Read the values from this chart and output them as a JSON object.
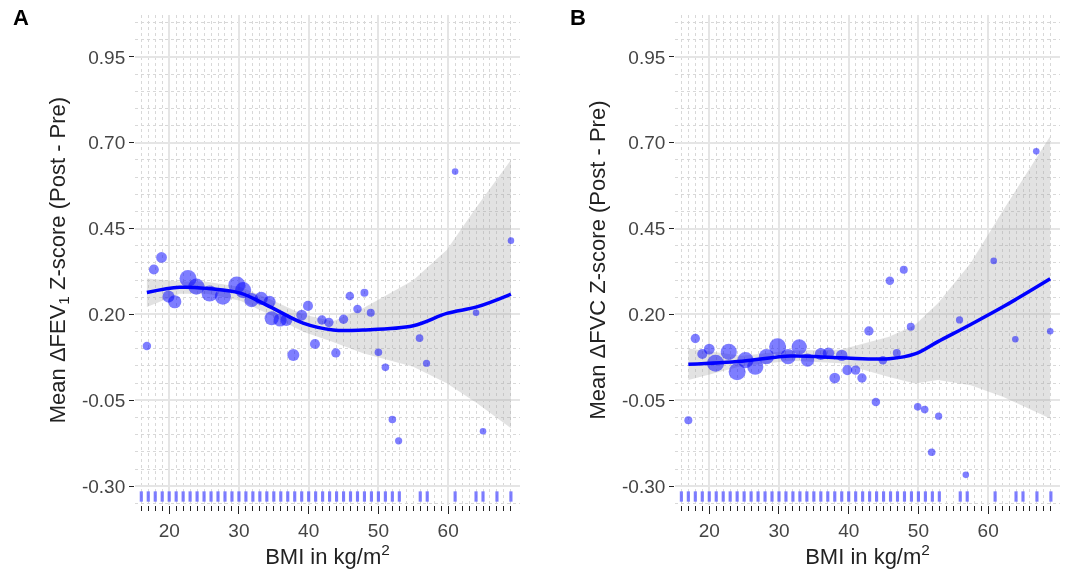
{
  "chart_data": [
    {
      "type": "bubble",
      "title": "A",
      "xlabel": "BMI in kg/m$^{2}$",
      "ylabel": "Mean ΔFEV$_{1}$ Z-score (Post - Pre)",
      "xlim": [
        15.1,
        70.3
      ],
      "ylim": [
        -0.355,
        1.072
      ],
      "grid": true,
      "xticks": [
        {
          "value": 16,
          "label": null
        },
        {
          "value": 17,
          "label": null
        },
        {
          "value": 18,
          "label": null
        },
        {
          "value": 19,
          "label": null
        },
        20,
        {
          "value": 21,
          "label": null
        },
        {
          "value": 22,
          "label": null
        },
        {
          "value": 23,
          "label": null
        },
        {
          "value": 24,
          "label": null
        },
        {
          "value": 25,
          "label": null
        },
        {
          "value": 26,
          "label": null
        },
        {
          "value": 27,
          "label": null
        },
        {
          "value": 28,
          "label": null
        },
        {
          "value": 29,
          "label": null
        },
        30,
        {
          "value": 31,
          "label": null
        },
        {
          "value": 32,
          "label": null
        },
        {
          "value": 33,
          "label": null
        },
        {
          "value": 34,
          "label": null
        },
        {
          "value": 35,
          "label": null
        },
        {
          "value": 36,
          "label": null
        },
        {
          "value": 37,
          "label": null
        },
        {
          "value": 38,
          "label": null
        },
        {
          "value": 39,
          "label": null
        },
        40,
        {
          "value": 41,
          "label": null
        },
        {
          "value": 42,
          "label": null
        },
        {
          "value": 43,
          "label": null
        },
        {
          "value": 44,
          "label": null
        },
        {
          "value": 45,
          "label": null
        },
        {
          "value": 46,
          "label": null
        },
        {
          "value": 47,
          "label": null
        },
        {
          "value": 48,
          "label": null
        },
        {
          "value": 49,
          "label": null
        },
        50,
        {
          "value": 51,
          "label": null
        },
        {
          "value": 52,
          "label": null
        },
        {
          "value": 53,
          "label": null
        },
        {
          "value": 54,
          "label": null
        },
        {
          "value": 55,
          "label": null
        },
        {
          "value": 56,
          "label": null
        },
        {
          "value": 57,
          "label": null
        },
        {
          "value": 58,
          "label": null
        },
        {
          "value": 59,
          "label": null
        },
        60,
        {
          "value": 61,
          "label": null
        },
        {
          "value": 62,
          "label": null
        },
        {
          "value": 63,
          "label": null
        },
        {
          "value": 64,
          "label": null
        },
        {
          "value": 65,
          "label": null
        },
        {
          "value": 66,
          "label": null
        },
        {
          "value": 67,
          "label": null
        },
        {
          "value": 68,
          "label": null
        },
        {
          "value": 69,
          "label": null
        }
      ],
      "yticks": [
        {
          "value": -0.3,
          "label": "-0.30"
        },
        {
          "value": -0.05,
          "label": "-0.05"
        },
        {
          "value": 0.2,
          "label": "0.20"
        },
        {
          "value": 0.45,
          "label": "0.45"
        },
        {
          "value": 0.7,
          "label": "0.70"
        },
        {
          "value": 0.95,
          "label": "0.95"
        }
      ],
      "series": [
        {
          "type": "line",
          "color": "#0000ff",
          "x": [
            16.8,
            21.5,
            25.4,
            30.2,
            34.4,
            39.2,
            43.5,
            47.8,
            55.0,
            59.8,
            64.1,
            69.0
          ],
          "values": [
            0.264,
            0.279,
            0.276,
            0.262,
            0.223,
            0.175,
            0.155,
            0.155,
            0.167,
            0.203,
            0.222,
            0.259
          ],
          "lower": [
            0.222,
            0.26,
            0.26,
            0.24,
            0.2,
            0.15,
            0.12,
            0.087,
            0.048,
            0.0,
            -0.058,
            -0.131
          ],
          "upper": [
            0.305,
            0.296,
            0.295,
            0.28,
            0.245,
            0.2,
            0.18,
            0.218,
            0.3,
            0.388,
            0.514,
            0.65
          ]
        },
        {
          "color": "#0000ff",
          "x": [
            16.8,
            17.8,
            18.9,
            22.7,
            20.8,
            19.9,
            23.9,
            25.8,
            27.7,
            29.7,
            30.6,
            31.8,
            33.2,
            34.4,
            34.7,
            35.9,
            36.8,
            39.0,
            39.9,
            37.8,
            40.9,
            41.9,
            42.9,
            43.9,
            45.0,
            45.9,
            47.0,
            48.0,
            48.9,
            50.0,
            51.0,
            52.0,
            52.9,
            55.9,
            56.9,
            61.0,
            64.0,
            65.0,
            69.0
          ],
          "values": [
            0.108,
            0.331,
            0.366,
            0.305,
            0.237,
            0.252,
            0.281,
            0.261,
            0.252,
            0.286,
            0.271,
            0.242,
            0.247,
            0.237,
            0.189,
            0.184,
            0.184,
            0.198,
            0.225,
            0.082,
            0.114,
            0.184,
            0.177,
            0.088,
            0.186,
            0.254,
            0.216,
            0.263,
            0.205,
            0.09,
            0.046,
            -0.106,
            -0.168,
            0.131,
            0.058,
            0.616,
            0.205,
            -0.14,
            0.415
          ],
          "sizes": [
            0.25,
            0.35,
            0.4,
            1,
            0.6,
            0.5,
            0.9,
            0.9,
            0.9,
            1,
            0.9,
            0.7,
            0.6,
            0.5,
            0.7,
            0.6,
            0.5,
            0.4,
            0.35,
            0.5,
            0.35,
            0.3,
            0.3,
            0.3,
            0.3,
            0.25,
            0.25,
            0.22,
            0.22,
            0.2,
            0.2,
            0.2,
            0.18,
            0.2,
            0.18,
            0.15,
            0.15,
            0.15,
            0.15
          ]
        },
        {
          "type": "bar",
          "color": "#6666ff",
          "x": [
            16,
            17,
            18,
            19,
            20,
            21,
            22,
            23,
            24,
            25,
            26,
            27,
            28,
            29,
            30,
            31,
            32,
            33,
            34,
            35,
            36,
            37,
            38,
            39,
            40,
            41,
            42,
            43,
            44,
            45,
            46,
            47,
            48,
            49,
            50,
            51,
            52,
            53,
            56,
            57,
            61,
            64,
            65,
            67,
            69
          ],
          "base": [
            -0.345,
            -0.345,
            -0.345,
            -0.345,
            -0.345,
            -0.345,
            -0.345,
            -0.345,
            -0.345,
            -0.345,
            -0.345,
            -0.345,
            -0.345,
            -0.345,
            -0.345,
            -0.345,
            -0.345,
            -0.345,
            -0.345,
            -0.345,
            -0.345,
            -0.345,
            -0.345,
            -0.345,
            -0.345,
            -0.345,
            -0.345,
            -0.345,
            -0.345,
            -0.345,
            -0.345,
            -0.345,
            -0.345,
            -0.345,
            -0.345,
            -0.345,
            -0.345,
            -0.345,
            -0.345,
            -0.345,
            -0.345,
            -0.345,
            -0.345,
            -0.345,
            -0.345
          ],
          "values": [
            0.03,
            0.03,
            0.03,
            0.03,
            0.03,
            0.03,
            0.03,
            0.03,
            0.03,
            0.03,
            0.03,
            0.03,
            0.03,
            0.03,
            0.03,
            0.03,
            0.03,
            0.03,
            0.03,
            0.03,
            0.03,
            0.03,
            0.03,
            0.03,
            0.03,
            0.03,
            0.03,
            0.03,
            0.03,
            0.03,
            0.03,
            0.03,
            0.03,
            0.03,
            0.03,
            0.03,
            0.03,
            0.03,
            0.03,
            0.03,
            0.03,
            0.03,
            0.03,
            0.03,
            0.03
          ]
        }
      ]
    },
    {
      "type": "bubble",
      "title": "B",
      "xlabel": "BMI in kg/m$^{2}$",
      "ylabel": "Mean ΔFVC Z-score (Post - Pre)",
      "xlim": [
        15.1,
        70.3
      ],
      "ylim": [
        -0.355,
        1.072
      ],
      "grid": true,
      "xticks": [
        {
          "value": 16,
          "label": null
        },
        {
          "value": 17,
          "label": null
        },
        {
          "value": 18,
          "label": null
        },
        {
          "value": 19,
          "label": null
        },
        20,
        {
          "value": 21,
          "label": null
        },
        {
          "value": 22,
          "label": null
        },
        {
          "value": 23,
          "label": null
        },
        {
          "value": 24,
          "label": null
        },
        {
          "value": 25,
          "label": null
        },
        {
          "value": 26,
          "label": null
        },
        {
          "value": 27,
          "label": null
        },
        {
          "value": 28,
          "label": null
        },
        {
          "value": 29,
          "label": null
        },
        30,
        {
          "value": 31,
          "label": null
        },
        {
          "value": 32,
          "label": null
        },
        {
          "value": 33,
          "label": null
        },
        {
          "value": 34,
          "label": null
        },
        {
          "value": 35,
          "label": null
        },
        {
          "value": 36,
          "label": null
        },
        {
          "value": 37,
          "label": null
        },
        {
          "value": 38,
          "label": null
        },
        {
          "value": 39,
          "label": null
        },
        40,
        {
          "value": 41,
          "label": null
        },
        {
          "value": 42,
          "label": null
        },
        {
          "value": 43,
          "label": null
        },
        {
          "value": 44,
          "label": null
        },
        {
          "value": 45,
          "label": null
        },
        {
          "value": 46,
          "label": null
        },
        {
          "value": 47,
          "label": null
        },
        {
          "value": 48,
          "label": null
        },
        {
          "value": 49,
          "label": null
        },
        50,
        {
          "value": 51,
          "label": null
        },
        {
          "value": 52,
          "label": null
        },
        {
          "value": 53,
          "label": null
        },
        {
          "value": 54,
          "label": null
        },
        {
          "value": 55,
          "label": null
        },
        {
          "value": 56,
          "label": null
        },
        {
          "value": 57,
          "label": null
        },
        {
          "value": 58,
          "label": null
        },
        {
          "value": 59,
          "label": null
        },
        60,
        {
          "value": 61,
          "label": null
        },
        {
          "value": 62,
          "label": null
        },
        {
          "value": 63,
          "label": null
        },
        {
          "value": 64,
          "label": null
        },
        {
          "value": 65,
          "label": null
        },
        {
          "value": 66,
          "label": null
        },
        {
          "value": 67,
          "label": null
        },
        {
          "value": 68,
          "label": null
        },
        {
          "value": 69,
          "label": null
        }
      ],
      "yticks": [
        {
          "value": -0.3,
          "label": "-0.30"
        },
        {
          "value": -0.05,
          "label": "-0.05"
        },
        {
          "value": 0.2,
          "label": "0.20"
        },
        {
          "value": 0.45,
          "label": "0.45"
        },
        {
          "value": 0.7,
          "label": "0.70"
        },
        {
          "value": 0.95,
          "label": "0.95"
        }
      ],
      "series": [
        {
          "type": "line",
          "color": "#0000ff",
          "x": [
            17.0,
            24.7,
            31.7,
            38.8,
            45.8,
            49.5,
            52.8,
            57.5,
            62.2,
            68.9
          ],
          "values": [
            0.055,
            0.064,
            0.079,
            0.074,
            0.071,
            0.085,
            0.121,
            0.171,
            0.223,
            0.304
          ],
          "lower": [
            0.009,
            0.05,
            0.065,
            0.058,
            0.018,
            -0.001,
            0.009,
            -0.006,
            -0.04,
            -0.103
          ],
          "upper": [
            0.101,
            0.08,
            0.095,
            0.097,
            0.135,
            0.169,
            0.233,
            0.35,
            0.505,
            0.719
          ]
        },
        {
          "color": "#0000ff",
          "x": [
            17.0,
            18.0,
            19.0,
            20.0,
            20.9,
            22.8,
            24.0,
            25.2,
            26.6,
            28.2,
            29.8,
            31.3,
            32.9,
            34.1,
            36.0,
            37.1,
            39.0,
            38.0,
            39.8,
            41.0,
            41.9,
            42.9,
            43.9,
            44.9,
            45.9,
            46.9,
            47.9,
            48.9,
            49.9,
            50.9,
            51.9,
            52.9,
            55.9,
            56.8,
            60.8,
            63.9,
            66.9,
            68.9
          ],
          "values": [
            -0.108,
            0.13,
            0.085,
            0.099,
            0.058,
            0.091,
            0.033,
            0.067,
            0.048,
            0.077,
            0.106,
            0.077,
            0.106,
            0.067,
            0.085,
            0.087,
            0.081,
            0.015,
            0.038,
            0.038,
            0.015,
            0.152,
            -0.055,
            0.067,
            0.298,
            0.088,
            0.33,
            0.164,
            -0.069,
            -0.077,
            -0.201,
            -0.096,
            0.184,
            -0.267,
            0.356,
            0.128,
            0.675,
            0.151
          ],
          "sizes": [
            0.22,
            0.3,
            0.35,
            0.4,
            1,
            0.9,
            1,
            0.9,
            0.9,
            0.8,
            1,
            0.8,
            0.8,
            0.6,
            0.5,
            0.45,
            0.45,
            0.4,
            0.35,
            0.3,
            0.3,
            0.3,
            0.25,
            0.25,
            0.25,
            0.22,
            0.22,
            0.22,
            0.2,
            0.2,
            0.2,
            0.18,
            0.18,
            0.15,
            0.15,
            0.15,
            0.15,
            0.15
          ]
        },
        {
          "type": "bar",
          "color": "#6666ff",
          "x": [
            16,
            17,
            18,
            19,
            20,
            21,
            22,
            23,
            24,
            25,
            26,
            27,
            28,
            29,
            30,
            31,
            32,
            33,
            34,
            35,
            36,
            37,
            38,
            39,
            40,
            41,
            42,
            43,
            44,
            45,
            46,
            47,
            48,
            49,
            50,
            51,
            52,
            53,
            56,
            57,
            61,
            64,
            65,
            67,
            69
          ],
          "base": [
            -0.345,
            -0.345,
            -0.345,
            -0.345,
            -0.345,
            -0.345,
            -0.345,
            -0.345,
            -0.345,
            -0.345,
            -0.345,
            -0.345,
            -0.345,
            -0.345,
            -0.345,
            -0.345,
            -0.345,
            -0.345,
            -0.345,
            -0.345,
            -0.345,
            -0.345,
            -0.345,
            -0.345,
            -0.345,
            -0.345,
            -0.345,
            -0.345,
            -0.345,
            -0.345,
            -0.345,
            -0.345,
            -0.345,
            -0.345,
            -0.345,
            -0.345,
            -0.345,
            -0.345,
            -0.345,
            -0.345,
            -0.345,
            -0.345,
            -0.345,
            -0.345,
            -0.345
          ],
          "values": [
            0.03,
            0.03,
            0.03,
            0.03,
            0.03,
            0.03,
            0.03,
            0.03,
            0.03,
            0.03,
            0.03,
            0.03,
            0.03,
            0.03,
            0.03,
            0.03,
            0.03,
            0.03,
            0.03,
            0.03,
            0.03,
            0.03,
            0.03,
            0.03,
            0.03,
            0.03,
            0.03,
            0.03,
            0.03,
            0.03,
            0.03,
            0.03,
            0.03,
            0.03,
            0.03,
            0.03,
            0.03,
            0.03,
            0.03,
            0.03,
            0.03,
            0.03,
            0.03,
            0.03,
            0.03
          ]
        }
      ]
    }
  ]
}
